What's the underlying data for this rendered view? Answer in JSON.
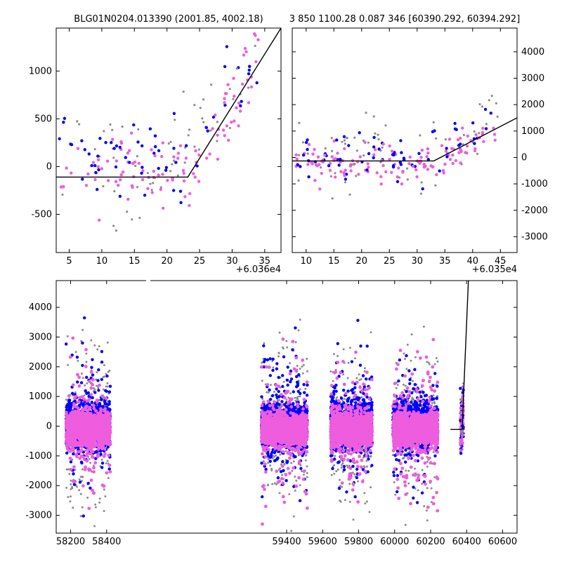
{
  "colors": {
    "gray": "#8c8c8c",
    "blue": "#0000ff",
    "pink": "#ee5ddd",
    "line": "#000000"
  },
  "chart_data": [
    {
      "type": "scatter",
      "title": "BLG01N0204.013390 (2001.85, 4002.18)",
      "xlabel": "",
      "ylabel": "",
      "x_offset_label": "+6.036e4",
      "xlim": [
        3,
        37.5
      ],
      "ylim": [
        -900,
        1450
      ],
      "xticks": [
        5,
        10,
        15,
        20,
        25,
        30,
        35
      ],
      "yticks": [
        -500,
        0,
        500,
        1000
      ],
      "yaxis_side": "left",
      "grid": false,
      "model_line": {
        "x": [
          3,
          23.2,
          37.5
        ],
        "y": [
          -110,
          -110,
          1450
        ]
      }
    },
    {
      "type": "scatter",
      "title": "3 850 1100.28 0.087 346 [60390.292, 60394.292]",
      "xlabel": "",
      "ylabel": "",
      "x_offset_label": "+6.035e4",
      "xlim": [
        7.5,
        48
      ],
      "ylim": [
        -3600,
        4900
      ],
      "xticks": [
        10,
        15,
        20,
        25,
        30,
        35,
        40,
        45
      ],
      "yticks": [
        -3000,
        -2000,
        -1000,
        0,
        1000,
        2000,
        3000,
        4000
      ],
      "yaxis_side": "right",
      "grid": false,
      "model_line": {
        "x": [
          7.5,
          33,
          48
        ],
        "y": [
          -130,
          -130,
          1500
        ]
      }
    },
    {
      "type": "scatter",
      "title": "",
      "xlabel": "",
      "ylabel": "",
      "xlim": [
        58120,
        60680
      ],
      "ylim": [
        -3600,
        4900
      ],
      "xticks": [
        58200,
        58400,
        59400,
        59600,
        59800,
        60000,
        60200,
        60400,
        60600
      ],
      "yticks": [
        -3000,
        -2000,
        -1000,
        0,
        1000,
        2000,
        3000,
        4000
      ],
      "yaxis_side": "left",
      "grid": false,
      "axis_break": true,
      "break_after_x": 58480,
      "break_resume_x": 59250,
      "seasons": [
        [
          58175,
          58420
        ],
        [
          59260,
          59515
        ],
        [
          59645,
          59875
        ],
        [
          59990,
          60240
        ]
      ],
      "model_line": {
        "x": [
          60310,
          60375,
          60412
        ],
        "y": [
          -110,
          -110,
          5200
        ]
      }
    }
  ]
}
